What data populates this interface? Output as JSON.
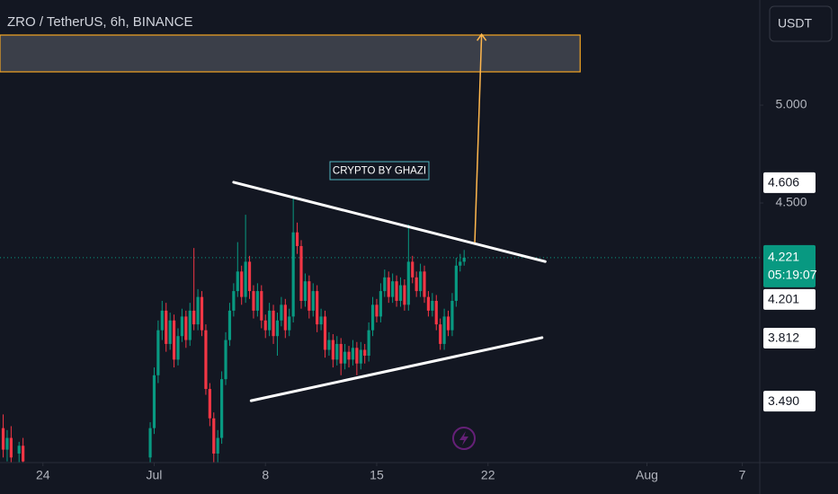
{
  "chart_data": {
    "type": "candlestick",
    "title": "ZRO / TetherUS, 6h, BINANCE",
    "currency": "USDT",
    "annotation": "CRYPTO BY GHAZI",
    "up_color": "#089981",
    "down_color": "#f23645",
    "xlim": [
      21.3,
      69.1
    ],
    "xticks": [
      24,
      {
        "value": 31,
        "label": "Jul"
      },
      {
        "value": 38,
        "label": "8"
      },
      {
        "value": 45,
        "label": "15"
      },
      {
        "value": 52,
        "label": "22"
      },
      {
        "value": 62,
        "label": "Aug"
      },
      {
        "value": 68,
        "label": "7"
      }
    ],
    "ylim": [
      3.174,
      5.537
    ],
    "yticks": [
      {
        "value": 5,
        "label": "5.000"
      },
      {
        "value": 4.5,
        "label": "4.500"
      }
    ],
    "current_price": {
      "value": 4.221,
      "countdown": "05:19:07"
    },
    "candles": [
      [
        21.5,
        3.35,
        3.42,
        3.2,
        3.24
      ],
      [
        21.75,
        3.24,
        3.34,
        3.18,
        3.3
      ],
      [
        22.0,
        3.3,
        3.36,
        3.16,
        3.2
      ],
      [
        22.5,
        3.22,
        3.28,
        3.12,
        3.26
      ],
      [
        22.75,
        3.26,
        3.3,
        3.15,
        3.18
      ],
      [
        30.75,
        3.2,
        3.38,
        3.17,
        3.35
      ],
      [
        31.0,
        3.35,
        3.66,
        3.32,
        3.62
      ],
      [
        31.25,
        3.62,
        3.9,
        3.58,
        3.85
      ],
      [
        31.5,
        3.85,
        4.0,
        3.8,
        3.95
      ],
      [
        31.75,
        3.95,
        3.99,
        3.74,
        3.78
      ],
      [
        32.0,
        3.78,
        3.94,
        3.75,
        3.9
      ],
      [
        32.25,
        3.9,
        3.93,
        3.66,
        3.7
      ],
      [
        32.5,
        3.7,
        3.86,
        3.67,
        3.82
      ],
      [
        32.75,
        3.82,
        3.96,
        3.79,
        3.92
      ],
      [
        33.0,
        3.92,
        3.95,
        3.76,
        3.8
      ],
      [
        33.25,
        3.8,
        3.99,
        3.77,
        3.95
      ],
      [
        33.5,
        3.95,
        4.27,
        3.85,
        3.88
      ],
      [
        33.75,
        3.88,
        4.06,
        3.85,
        4.02
      ],
      [
        34.0,
        4.02,
        4.05,
        3.82,
        3.85
      ],
      [
        34.25,
        3.85,
        3.88,
        3.52,
        3.55
      ],
      [
        34.5,
        3.55,
        3.58,
        3.36,
        3.4
      ],
      [
        34.75,
        3.4,
        3.43,
        3.1,
        3.22
      ],
      [
        35.0,
        3.22,
        3.34,
        3.15,
        3.3
      ],
      [
        35.25,
        3.3,
        3.64,
        3.27,
        3.6
      ],
      [
        35.5,
        3.6,
        3.84,
        3.57,
        3.8
      ],
      [
        35.75,
        3.8,
        3.99,
        3.77,
        3.95
      ],
      [
        36.0,
        3.95,
        4.09,
        3.92,
        4.05
      ],
      [
        36.25,
        4.05,
        4.3,
        4.02,
        4.15
      ],
      [
        36.5,
        4.15,
        4.18,
        3.98,
        4.02
      ],
      [
        36.75,
        4.02,
        4.44,
        3.99,
        4.2
      ],
      [
        37.0,
        4.2,
        4.23,
        4.01,
        4.05
      ],
      [
        37.25,
        4.05,
        4.08,
        3.91,
        3.95
      ],
      [
        37.5,
        3.95,
        4.09,
        3.92,
        4.05
      ],
      [
        37.75,
        4.05,
        4.08,
        3.86,
        3.9
      ],
      [
        38.0,
        3.9,
        3.93,
        3.81,
        3.85
      ],
      [
        38.25,
        3.85,
        3.99,
        3.82,
        3.95
      ],
      [
        38.5,
        3.95,
        3.98,
        3.78,
        3.82
      ],
      [
        38.75,
        3.82,
        3.94,
        3.72,
        3.9
      ],
      [
        39.0,
        3.9,
        4.02,
        3.87,
        3.98
      ],
      [
        39.25,
        3.98,
        4.01,
        3.81,
        3.85
      ],
      [
        39.5,
        3.85,
        3.96,
        3.82,
        3.92
      ],
      [
        39.75,
        3.92,
        4.53,
        3.89,
        4.35
      ],
      [
        40.0,
        4.35,
        4.4,
        4.24,
        4.28
      ],
      [
        40.25,
        4.28,
        4.31,
        3.96,
        4.0
      ],
      [
        40.5,
        4.0,
        4.14,
        3.97,
        4.1
      ],
      [
        40.75,
        4.1,
        4.13,
        3.91,
        3.95
      ],
      [
        41.0,
        3.95,
        4.09,
        3.92,
        4.05
      ],
      [
        41.25,
        4.05,
        4.08,
        3.84,
        3.88
      ],
      [
        41.5,
        3.88,
        3.96,
        3.85,
        3.92
      ],
      [
        41.75,
        3.92,
        3.95,
        3.71,
        3.75
      ],
      [
        42.0,
        3.75,
        3.84,
        3.72,
        3.8
      ],
      [
        42.25,
        3.8,
        3.83,
        3.66,
        3.7
      ],
      [
        42.5,
        3.7,
        3.82,
        3.67,
        3.78
      ],
      [
        42.75,
        3.78,
        3.81,
        3.62,
        3.68
      ],
      [
        43.0,
        3.68,
        3.78,
        3.65,
        3.74
      ],
      [
        43.25,
        3.74,
        3.77,
        3.66,
        3.7
      ],
      [
        43.5,
        3.7,
        3.8,
        3.67,
        3.76
      ],
      [
        43.75,
        3.76,
        3.79,
        3.62,
        3.68
      ],
      [
        44.0,
        3.68,
        3.79,
        3.65,
        3.75
      ],
      [
        44.25,
        3.75,
        3.78,
        3.68,
        3.72
      ],
      [
        44.5,
        3.72,
        3.89,
        3.69,
        3.85
      ],
      [
        44.75,
        3.85,
        4.02,
        3.82,
        3.98
      ],
      [
        45.0,
        3.98,
        4.01,
        3.89,
        3.92
      ],
      [
        45.25,
        3.92,
        4.09,
        3.89,
        4.05
      ],
      [
        45.5,
        4.05,
        4.16,
        4.02,
        4.12
      ],
      [
        45.75,
        4.12,
        4.15,
        3.99,
        4.02
      ],
      [
        46.0,
        4.02,
        4.14,
        3.99,
        4.1
      ],
      [
        46.25,
        4.1,
        4.13,
        3.97,
        4.0
      ],
      [
        46.5,
        4.0,
        4.12,
        3.97,
        4.08
      ],
      [
        46.75,
        4.08,
        4.11,
        3.95,
        3.98
      ],
      [
        47.0,
        3.98,
        4.39,
        3.95,
        4.2
      ],
      [
        47.25,
        4.2,
        4.23,
        4.09,
        4.12
      ],
      [
        47.5,
        4.12,
        4.15,
        4.02,
        4.05
      ],
      [
        47.75,
        4.05,
        4.19,
        4.02,
        4.15
      ],
      [
        48.0,
        4.15,
        4.18,
        3.99,
        4.02
      ],
      [
        48.25,
        4.02,
        4.05,
        3.92,
        3.95
      ],
      [
        48.5,
        3.95,
        4.04,
        3.92,
        4.0
      ],
      [
        48.75,
        4.0,
        4.03,
        3.85,
        3.88
      ],
      [
        49.0,
        3.88,
        3.91,
        3.75,
        3.78
      ],
      [
        49.25,
        3.78,
        3.96,
        3.75,
        3.92
      ],
      [
        49.5,
        3.92,
        3.95,
        3.82,
        3.85
      ],
      [
        49.75,
        3.85,
        4.04,
        3.82,
        4.0
      ],
      [
        50.0,
        4.0,
        4.22,
        3.97,
        4.18
      ],
      [
        50.25,
        4.18,
        4.24,
        4.15,
        4.2
      ],
      [
        50.5,
        4.2,
        4.26,
        4.18,
        4.221
      ]
    ],
    "trendlines": [
      {
        "start": {
          "x": 36.0,
          "y": 4.606
        },
        "end": {
          "x": 55.6,
          "y": 4.201
        }
      },
      {
        "start": {
          "x": 37.1,
          "y": {
            "value": 3.49,
            "label": "3.490"
          }
        },
        "end": {
          "x": 55.4,
          "y": 3.812
        }
      }
    ],
    "target_zone": {
      "x": [
        21.3,
        57.8
      ],
      "y": [
        5.17,
        5.358
      ],
      "color": "#f5a623"
    },
    "arrow": {
      "start": {
        "x": 51.17,
        "y": 4.298
      },
      "end": {
        "x": 51.6,
        "y": 5.362
      },
      "color": "#ffb74d"
    }
  }
}
